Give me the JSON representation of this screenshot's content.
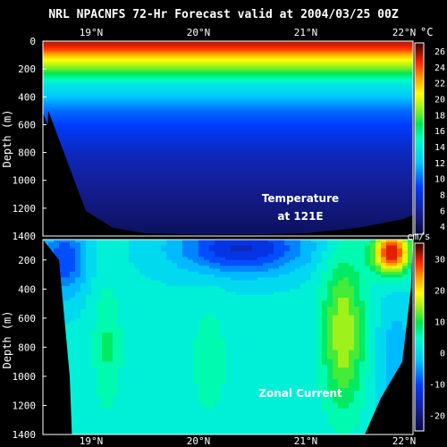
{
  "title": "NRL NPACNFS 72-Hr Forecast valid at 2004/03/25 00Z",
  "chart_data": [
    {
      "type": "heatmap",
      "panel": "top",
      "ylabel": "Depth (m)",
      "x_ticks": [
        "19°N",
        "20°N",
        "21°N",
        "22°N"
      ],
      "x_tick_values": [
        19,
        20,
        21,
        22
      ],
      "xlim": [
        18.55,
        22.0
      ],
      "y_ticks": [
        "0",
        "200",
        "400",
        "600",
        "800",
        "1000",
        "1200",
        "1400"
      ],
      "ylim": [
        0,
        1400
      ],
      "y_inverted": true,
      "annotation": [
        "Temperature",
        "at 121E"
      ],
      "colorbar": {
        "unit": "°C",
        "ticks": [
          "26",
          "24",
          "22",
          "20",
          "18",
          "16",
          "14",
          "12",
          "10",
          "8",
          "6",
          "4"
        ],
        "range": [
          3,
          27
        ]
      },
      "profile_depth": [
        0,
        30,
        60,
        100,
        150,
        200,
        250,
        300,
        400,
        500,
        600,
        700,
        800,
        1000,
        1200,
        1400
      ],
      "profile_temp_c": [
        25.5,
        25,
        24,
        22,
        20,
        18,
        16,
        14,
        12,
        10,
        9,
        8,
        7,
        6,
        5,
        4
      ],
      "seafloor_x": [
        18.6,
        18.95,
        19.2,
        19.5,
        20,
        20.5,
        21,
        21.5,
        21.9,
        22
      ],
      "seafloor_depth_m": [
        500,
        1220,
        1340,
        1380,
        1390,
        1390,
        1380,
        1340,
        1280,
        1250
      ]
    },
    {
      "type": "heatmap",
      "panel": "bottom",
      "ylabel": "Depth (m)",
      "x_ticks": [
        "19°N",
        "20°N",
        "21°N",
        "22°N"
      ],
      "x_tick_values": [
        19,
        20,
        21,
        22
      ],
      "xlim": [
        18.55,
        22.0
      ],
      "y_ticks": [
        "200",
        "400",
        "600",
        "800",
        "1000",
        "1200",
        "1400"
      ],
      "y_tick_values": [
        200,
        400,
        600,
        800,
        1000,
        1200,
        1400
      ],
      "ylim": [
        60,
        1400
      ],
      "y_inverted": true,
      "annotation": [
        "Zonal Current"
      ],
      "colorbar": {
        "unit": "cm/s",
        "ticks": [
          "30",
          "20",
          "10",
          "0",
          "-10",
          "-20"
        ],
        "range": [
          -25,
          35
        ]
      },
      "seafloor_x": [
        18.55,
        18.8,
        19.0,
        19.5,
        20.0,
        20.5,
        21.0,
        21.5,
        21.9,
        22.0
      ],
      "seafloor_depth_m": [
        1400,
        1400,
        1400,
        1400,
        1400,
        1400,
        1400,
        1400,
        1250,
        1250
      ],
      "left_edge_x": [
        18.55,
        18.7,
        18.75,
        18.8,
        18.82
      ],
      "left_edge_depth_m": [
        60,
        200,
        600,
        1000,
        1400
      ],
      "right_edge_x": [
        22.0,
        21.98,
        21.9,
        21.7,
        21.55
      ],
      "right_edge_depth_m": [
        60,
        400,
        900,
        1150,
        1400
      ]
    }
  ]
}
